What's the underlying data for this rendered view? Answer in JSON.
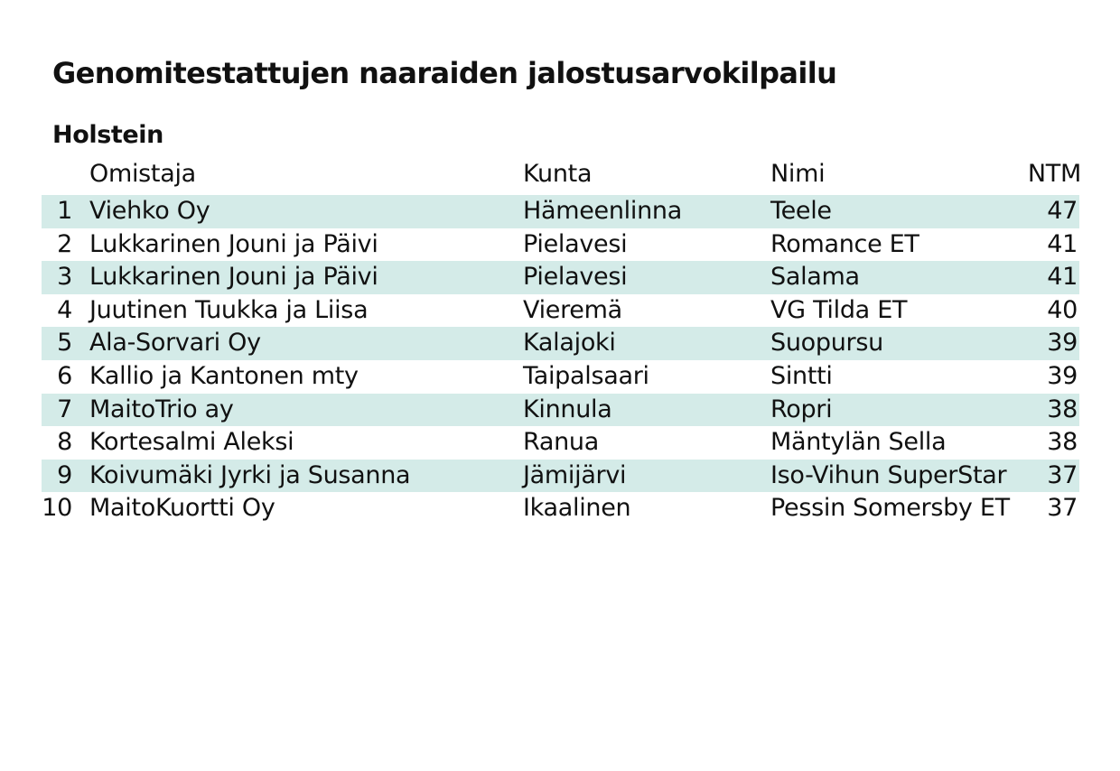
{
  "title": "Genomitestattujen naaraiden jalostusarvokilpailu",
  "subtitle": "Holstein",
  "table": {
    "headers": {
      "owner": "Omistaja",
      "kunta": "Kunta",
      "nimi": "Nimi",
      "ntm": "NTM"
    },
    "rows": [
      {
        "rank": "1",
        "owner": "Viehko Oy",
        "kunta": "Hämeenlinna",
        "nimi": "Teele",
        "ntm": "47"
      },
      {
        "rank": "2",
        "owner": "Lukkarinen Jouni ja Päivi",
        "kunta": "Pielavesi",
        "nimi": "Romance ET",
        "ntm": "41"
      },
      {
        "rank": "3",
        "owner": "Lukkarinen Jouni ja Päivi",
        "kunta": "Pielavesi",
        "nimi": "Salama",
        "ntm": "41"
      },
      {
        "rank": "4",
        "owner": "Juutinen Tuukka ja Liisa",
        "kunta": "Vieremä",
        "nimi": "VG Tilda ET",
        "ntm": "40"
      },
      {
        "rank": "5",
        "owner": "Ala-Sorvari Oy",
        "kunta": "Kalajoki",
        "nimi": "Suopursu",
        "ntm": "39"
      },
      {
        "rank": "6",
        "owner": "Kallio ja Kantonen mty",
        "kunta": "Taipalsaari",
        "nimi": "Sintti",
        "ntm": "39"
      },
      {
        "rank": "7",
        "owner": "MaitoTrio ay",
        "kunta": "Kinnula",
        "nimi": "Ropri",
        "ntm": "38"
      },
      {
        "rank": "8",
        "owner": "Kortesalmi Aleksi",
        "kunta": "Ranua",
        "nimi": "Mäntylän Sella",
        "ntm": "38"
      },
      {
        "rank": "9",
        "owner": "Koivumäki Jyrki ja Susanna",
        "kunta": "Jämijärvi",
        "nimi": "Iso-Vihun SuperStar",
        "ntm": "37"
      },
      {
        "rank": "10",
        "owner": "MaitoKuortti Oy",
        "kunta": "Ikaalinen",
        "nimi": "Pessin Somersby ET",
        "ntm": "37"
      }
    ]
  },
  "colors": {
    "row_shade": "#d4ebe8",
    "text": "#111111",
    "background": "#ffffff"
  }
}
